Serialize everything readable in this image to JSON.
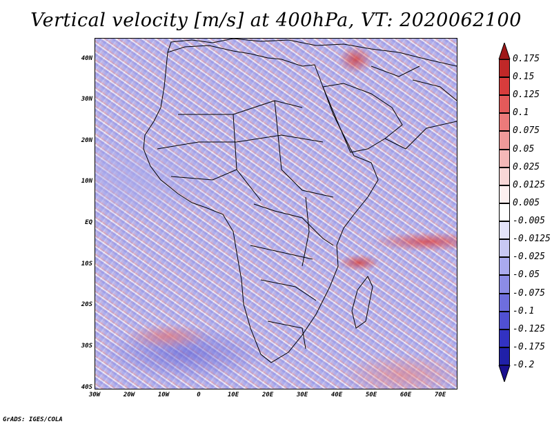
{
  "title": "Vertical velocity [m/s] at 400hPa, VT: 2020062100",
  "credit": "GrADS: IGES/COLA",
  "lat_labels": [
    "40N",
    "30N",
    "20N",
    "10N",
    "EQ",
    "10S",
    "20S",
    "30S",
    "40S"
  ],
  "lon_labels": [
    "30W",
    "20W",
    "10W",
    "0",
    "10E",
    "20E",
    "30E",
    "40E",
    "50E",
    "60E",
    "70E"
  ],
  "colorbar": {
    "labels": [
      "0.175",
      "0.15",
      "0.125",
      "0.1",
      "0.075",
      "0.05",
      "0.025",
      "0.0125",
      "0.005",
      "-0.005",
      "-0.0125",
      "-0.025",
      "-0.05",
      "-0.075",
      "-0.1",
      "-0.125",
      "-0.175",
      "-0.2"
    ],
    "colors": [
      "#a01818",
      "#c02828",
      "#d83c3c",
      "#e45a5a",
      "#ec7a7a",
      "#f09a9a",
      "#f4b8b8",
      "#f8d6d6",
      "#fdf0f0",
      "#ffffff",
      "#e4e4fa",
      "#c8c8f4",
      "#aaaaee",
      "#8c8ce6",
      "#6e6ede",
      "#5050d2",
      "#3232c2",
      "#2020a8",
      "#1a1090"
    ]
  }
}
